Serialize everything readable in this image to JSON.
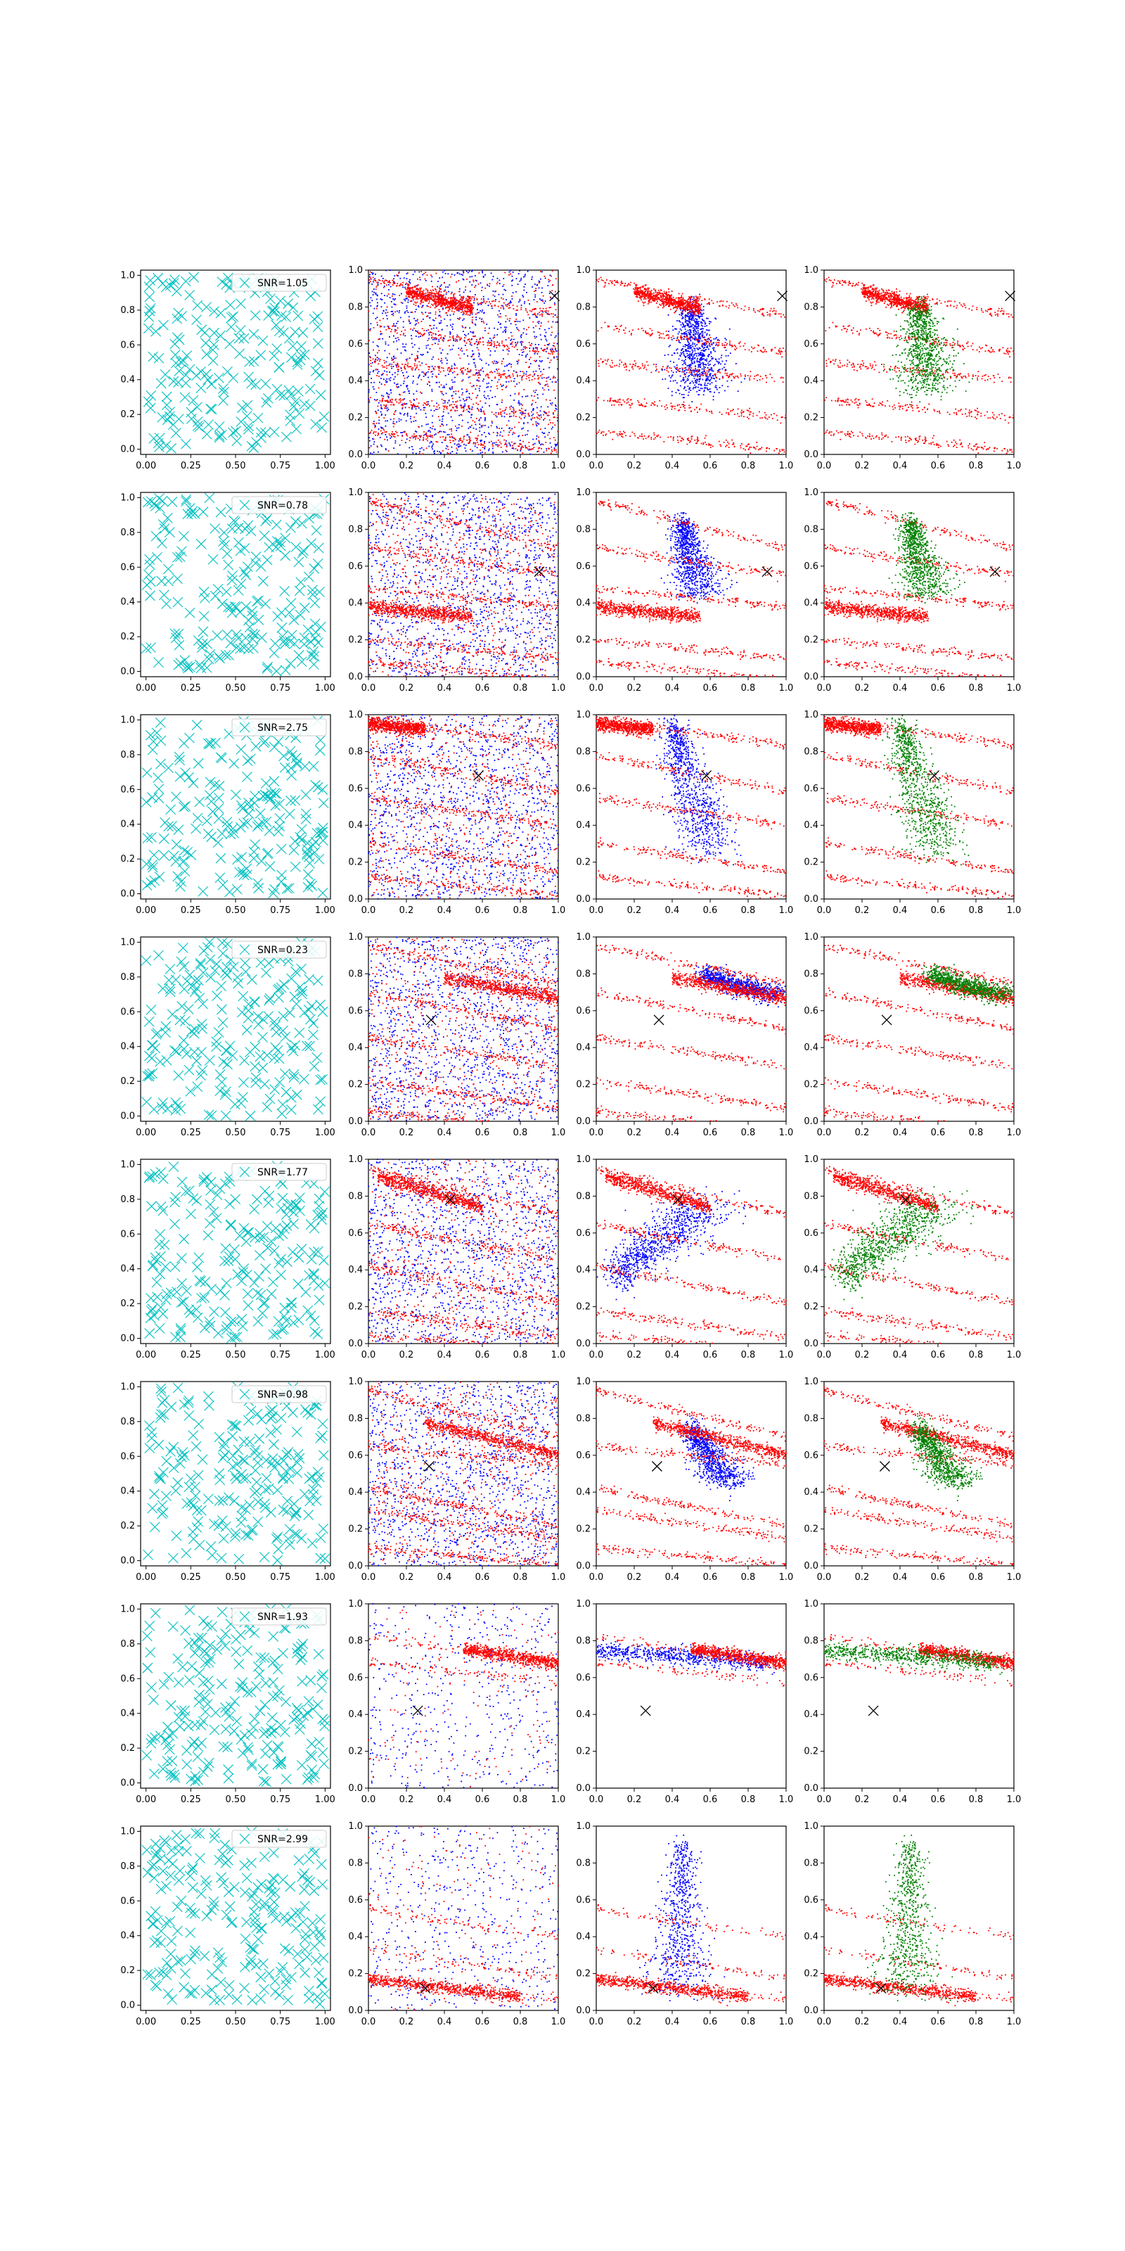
{
  "figure": {
    "rows": 8,
    "cols": 4,
    "colors": {
      "cyan": "#00bfbf",
      "red": "#ff0000",
      "blue": "#0000ff",
      "green": "#008000",
      "marker": "#000000",
      "axis": "#000000"
    },
    "tick_labels_first_col": [
      "0.00",
      "0.25",
      "0.50",
      "0.75",
      "1.00"
    ],
    "tick_labels_other_cols": [
      "0.0",
      "0.2",
      "0.4",
      "0.6",
      "0.8",
      "1.0"
    ],
    "y_tick_labels": [
      "0.0",
      "0.2",
      "0.4",
      "0.6",
      "0.8",
      "1.0"
    ]
  },
  "chart_data": [
    {
      "row": 1,
      "col1_type": "scatter",
      "legend": "SNR=1.05",
      "x_marker": [
        0.98,
        0.86
      ]
    },
    {
      "row": 2,
      "col1_type": "scatter",
      "legend": "SNR=0.78",
      "x_marker": [
        0.9,
        0.57
      ]
    },
    {
      "row": 3,
      "col1_type": "scatter",
      "legend": "SNR=2.75",
      "x_marker": [
        0.58,
        0.67
      ]
    },
    {
      "row": 4,
      "col1_type": "scatter",
      "legend": "SNR=0.23",
      "x_marker": [
        0.33,
        0.55
      ]
    },
    {
      "row": 5,
      "col1_type": "scatter",
      "legend": "SNR=1.77",
      "x_marker": [
        0.43,
        0.78
      ]
    },
    {
      "row": 6,
      "col1_type": "scatter",
      "legend": "SNR=0.98",
      "x_marker": [
        0.32,
        0.54
      ]
    },
    {
      "row": 7,
      "col1_type": "scatter",
      "legend": "SNR=1.93",
      "x_marker": [
        0.26,
        0.42
      ]
    },
    {
      "row": 8,
      "col1_type": "scatter",
      "legend": "SNR=2.99",
      "x_marker": [
        0.3,
        0.12
      ]
    }
  ]
}
